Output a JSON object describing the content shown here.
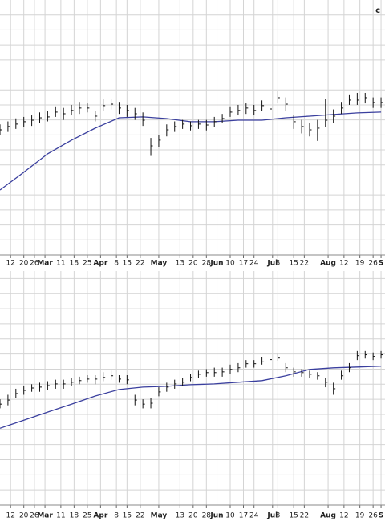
{
  "chart_data": [
    {
      "type": "ohlc",
      "corner_text": "c",
      "color": "#111111",
      "grid_color": "#d4d4d4",
      "xlim": [
        0,
        145.5
      ],
      "ylim": [
        0,
        17
      ],
      "xticks": [
        {
          "value": 4,
          "label": "12"
        },
        {
          "value": 9,
          "label": "20"
        },
        {
          "value": 13,
          "label": "26"
        },
        {
          "value": 17,
          "label": "Mar"
        },
        {
          "value": 23,
          "label": "11"
        },
        {
          "value": 28,
          "label": "18"
        },
        {
          "value": 33,
          "label": "25"
        },
        {
          "value": 38,
          "label": "Apr"
        },
        {
          "value": 44,
          "label": "8"
        },
        {
          "value": 48,
          "label": "15"
        },
        {
          "value": 53,
          "label": "22"
        },
        {
          "value": 60,
          "label": "May"
        },
        {
          "value": 68,
          "label": "13"
        },
        {
          "value": 73,
          "label": "20"
        },
        {
          "value": 78,
          "label": "28"
        },
        {
          "value": 82,
          "label": "Jun"
        },
        {
          "value": 87,
          "label": "10"
        },
        {
          "value": 92,
          "label": "17"
        },
        {
          "value": 96,
          "label": "24"
        },
        {
          "value": 103,
          "label": "Jul"
        },
        {
          "value": 105,
          "label": "8"
        },
        {
          "value": 111,
          "label": "15"
        },
        {
          "value": 115,
          "label": "22"
        },
        {
          "value": 124,
          "label": "Aug"
        },
        {
          "value": 130,
          "label": "12"
        },
        {
          "value": 136,
          "label": "19"
        },
        {
          "value": 141,
          "label": "26"
        },
        {
          "value": 144,
          "label": "S"
        }
      ],
      "ygrid": [
        1,
        2,
        3,
        4,
        5,
        6,
        7,
        8,
        9,
        10,
        11,
        12,
        13,
        14,
        15,
        16
      ],
      "x": [
        0,
        3,
        6,
        9,
        12,
        15,
        18,
        21,
        24,
        27,
        30,
        33,
        36,
        39,
        42,
        45,
        48,
        51,
        54,
        57,
        60,
        63,
        66,
        69,
        72,
        75,
        78,
        81,
        84,
        87,
        90,
        93,
        96,
        99,
        102,
        105,
        108,
        111,
        114,
        117,
        120,
        123,
        126,
        129,
        132,
        135,
        138,
        141,
        144
      ],
      "close": [
        8.34,
        8.56,
        8.72,
        8.88,
        8.98,
        9.14,
        9.2,
        9.52,
        9.41,
        9.63,
        9.79,
        9.79,
        9.25,
        9.95,
        10.05,
        9.79,
        9.63,
        9.41,
        8.98,
        7.27,
        7.65,
        8.34,
        8.56,
        8.72,
        8.61,
        8.72,
        8.66,
        8.88,
        9.09,
        9.52,
        9.63,
        9.79,
        9.63,
        9.95,
        9.73,
        10.48,
        10.05,
        8.88,
        8.56,
        8.34,
        8.45,
        8.98,
        9.25,
        9.79,
        10.32,
        10.32,
        10.48,
        10.16,
        10.16
      ],
      "high": [
        8.7,
        8.9,
        9.1,
        9.2,
        9.3,
        9.5,
        9.6,
        9.9,
        9.8,
        10.0,
        10.2,
        10.1,
        9.6,
        10.4,
        10.4,
        10.2,
        10.0,
        9.8,
        9.5,
        7.8,
        8.0,
        8.7,
        8.9,
        9.0,
        8.9,
        9.0,
        9.0,
        9.2,
        9.4,
        9.9,
        10.0,
        10.1,
        10.0,
        10.3,
        10.1,
        10.9,
        10.5,
        9.3,
        9.0,
        8.8,
        9.0,
        10.4,
        9.7,
        10.2,
        10.7,
        10.8,
        10.8,
        10.5,
        10.5
      ],
      "low": [
        8.0,
        8.2,
        8.4,
        8.5,
        8.6,
        8.8,
        8.9,
        9.2,
        9.0,
        9.3,
        9.4,
        9.5,
        8.9,
        9.6,
        9.7,
        9.4,
        9.2,
        9.0,
        8.6,
        6.6,
        7.2,
        7.9,
        8.2,
        8.4,
        8.3,
        8.4,
        8.3,
        8.5,
        8.8,
        9.2,
        9.3,
        9.4,
        9.3,
        9.6,
        9.4,
        10.1,
        9.6,
        8.4,
        8.1,
        7.9,
        7.6,
        8.5,
        8.8,
        9.4,
        10.0,
        10.0,
        10.1,
        9.8,
        9.8
      ],
      "ma": {
        "color": "#3a3f9e",
        "x": [
          0,
          9,
          18,
          27,
          36,
          45,
          54,
          63,
          72,
          81,
          90,
          99,
          108,
          117,
          126,
          135,
          144
        ],
        "values": [
          4.33,
          5.51,
          6.74,
          7.65,
          8.45,
          9.14,
          9.2,
          9.09,
          8.88,
          8.88,
          8.98,
          8.98,
          9.14,
          9.25,
          9.36,
          9.47,
          9.52
        ]
      }
    },
    {
      "type": "ohlc",
      "color": "#111111",
      "grid_color": "#d4d4d4",
      "xlim": [
        0,
        145.5
      ],
      "ylim": [
        0,
        15.5
      ],
      "xticks": [
        {
          "value": 4,
          "label": "12"
        },
        {
          "value": 9,
          "label": "20"
        },
        {
          "value": 13,
          "label": "26"
        },
        {
          "value": 17,
          "label": "Mar"
        },
        {
          "value": 23,
          "label": "11"
        },
        {
          "value": 28,
          "label": "18"
        },
        {
          "value": 33,
          "label": "25"
        },
        {
          "value": 38,
          "label": "Apr"
        },
        {
          "value": 44,
          "label": "8"
        },
        {
          "value": 48,
          "label": "15"
        },
        {
          "value": 53,
          "label": "22"
        },
        {
          "value": 60,
          "label": "May"
        },
        {
          "value": 68,
          "label": "13"
        },
        {
          "value": 73,
          "label": "20"
        },
        {
          "value": 78,
          "label": "28"
        },
        {
          "value": 82,
          "label": "Jun"
        },
        {
          "value": 87,
          "label": "10"
        },
        {
          "value": 92,
          "label": "17"
        },
        {
          "value": 96,
          "label": "24"
        },
        {
          "value": 103,
          "label": "Jul"
        },
        {
          "value": 105,
          "label": "8"
        },
        {
          "value": 111,
          "label": "15"
        },
        {
          "value": 115,
          "label": "22"
        },
        {
          "value": 124,
          "label": "Aug"
        },
        {
          "value": 130,
          "label": "12"
        },
        {
          "value": 136,
          "label": "19"
        },
        {
          "value": 141,
          "label": "26"
        },
        {
          "value": 144,
          "label": "S"
        }
      ],
      "ygrid": [
        1,
        2,
        3,
        4,
        5,
        6,
        7,
        8,
        9,
        10,
        11,
        12,
        13,
        14,
        15
      ],
      "x": [
        0,
        3,
        6,
        9,
        12,
        15,
        18,
        21,
        24,
        27,
        30,
        33,
        36,
        39,
        42,
        45,
        48,
        51,
        54,
        57,
        60,
        63,
        66,
        69,
        72,
        75,
        78,
        81,
        84,
        87,
        90,
        93,
        96,
        99,
        102,
        105,
        108,
        111,
        114,
        117,
        120,
        123,
        126,
        129,
        132,
        135,
        138,
        141,
        144
      ],
      "close": [
        6.68,
        6.95,
        7.38,
        7.59,
        7.75,
        7.81,
        7.91,
        8.02,
        8.02,
        8.13,
        8.24,
        8.34,
        8.34,
        8.45,
        8.56,
        8.34,
        8.29,
        6.95,
        6.68,
        6.74,
        7.49,
        7.81,
        8.02,
        8.13,
        8.45,
        8.66,
        8.77,
        8.77,
        8.82,
        8.98,
        9.09,
        9.36,
        9.36,
        9.52,
        9.63,
        9.73,
        9.09,
        8.82,
        8.77,
        8.66,
        8.56,
        8.13,
        7.7,
        8.56,
        9.09,
        9.89,
        9.95,
        9.84,
        9.95
      ],
      "high": [
        7.0,
        7.3,
        7.7,
        7.9,
        8.0,
        8.1,
        8.2,
        8.3,
        8.3,
        8.4,
        8.5,
        8.6,
        8.6,
        8.8,
        8.9,
        8.6,
        8.6,
        7.3,
        7.0,
        7.1,
        7.8,
        8.1,
        8.3,
        8.4,
        8.7,
        8.9,
        9.0,
        9.1,
        9.1,
        9.3,
        9.4,
        9.6,
        9.6,
        9.8,
        9.9,
        10.0,
        9.4,
        9.1,
        9.0,
        8.9,
        8.8,
        8.4,
        8.1,
        8.9,
        9.4,
        10.2,
        10.2,
        10.1,
        10.2
      ],
      "low": [
        6.4,
        6.6,
        7.1,
        7.3,
        7.5,
        7.5,
        7.6,
        7.7,
        7.7,
        7.9,
        8.0,
        8.1,
        8.0,
        8.2,
        8.3,
        8.1,
        8.0,
        6.6,
        6.4,
        6.4,
        7.2,
        7.5,
        7.7,
        7.9,
        8.2,
        8.4,
        8.5,
        8.5,
        8.5,
        8.7,
        8.8,
        9.1,
        9.1,
        9.3,
        9.4,
        9.5,
        8.8,
        8.5,
        8.5,
        8.4,
        8.3,
        7.8,
        7.3,
        8.3,
        8.8,
        9.6,
        9.7,
        9.6,
        9.7
      ],
      "ma": {
        "color": "#3a3f9e",
        "x": [
          0,
          9,
          18,
          27,
          36,
          45,
          54,
          63,
          72,
          81,
          90,
          99,
          108,
          117,
          126,
          135,
          144
        ],
        "values": [
          5.08,
          5.61,
          6.15,
          6.68,
          7.22,
          7.65,
          7.81,
          7.86,
          7.97,
          8.02,
          8.13,
          8.24,
          8.56,
          8.98,
          9.09,
          9.14,
          9.2
        ]
      }
    }
  ]
}
